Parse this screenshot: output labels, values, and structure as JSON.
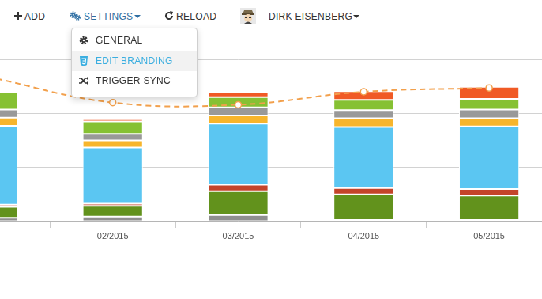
{
  "toolbar": {
    "items": [
      {
        "label": "ADD"
      },
      {
        "label": "SETTINGS",
        "menu": [
          {
            "label": "GENERAL"
          },
          {
            "label": "EDIT BRANDING",
            "active": true
          },
          {
            "label": "TRIGGER SYNC"
          }
        ]
      },
      {
        "label": "RELOAD"
      },
      {
        "label": "DIRK EISENBERG"
      }
    ]
  },
  "chart_data": {
    "type": "bar",
    "stacked": true,
    "grid": true,
    "tick_labels": "x",
    "categories": [
      null,
      "02/2015",
      "03/2015",
      "04/2015",
      "05/2015"
    ],
    "ylim": [
      0,
      300
    ],
    "yticks": [
      0,
      100,
      200,
      300
    ],
    "series": [
      {
        "color": "#8f8f8f",
        "values": [
          7,
          9,
          12,
          3,
          3
        ]
      },
      {
        "color": "#62921c",
        "values": [
          20,
          20,
          44,
          47,
          45
        ]
      },
      {
        "color": "#c4442a",
        "values": [
          4,
          4,
          12,
          12,
          12
        ]
      },
      {
        "color": "#5bc6f2",
        "values": [
          146,
          104,
          113,
          113,
          116
        ]
      },
      {
        "color": "#f7b52c",
        "values": [
          15,
          13,
          15,
          16,
          15
        ]
      },
      {
        "color": "#999999",
        "values": [
          15,
          12,
          15,
          15,
          16
        ]
      },
      {
        "color": "#86c133",
        "values": [
          32,
          23,
          19,
          19,
          20
        ]
      },
      {
        "color": "#f05a25",
        "values": [
          0,
          4,
          9,
          16,
          22
        ]
      },
      {
        "type": "line",
        "color": "#f2a04c",
        "line_style": "dashed",
        "marker": "circle",
        "values": [
          268,
          220,
          216,
          240,
          247
        ]
      }
    ]
  }
}
